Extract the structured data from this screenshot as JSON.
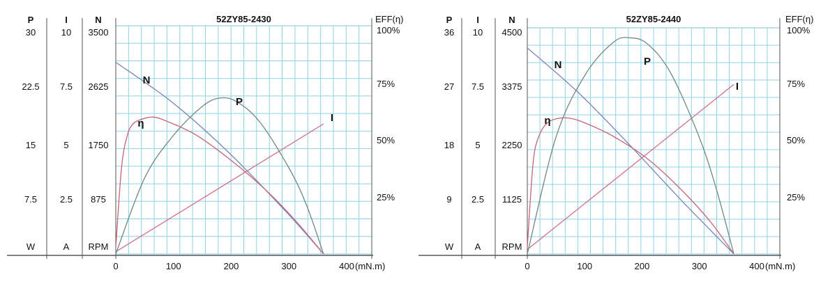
{
  "chart_data": [
    {
      "type": "line",
      "title": "52ZY85-2430",
      "xlabel": "(mN.m)",
      "x_ticks": [
        "0",
        "100",
        "200",
        "300",
        "400"
      ],
      "xlim": [
        0,
        400
      ],
      "grid": true,
      "axes": {
        "P": {
          "header": "P",
          "unit": "W",
          "ticks": [
            "30",
            "22.5",
            "15",
            "7.5"
          ],
          "range": [
            0,
            30
          ]
        },
        "I": {
          "header": "I",
          "unit": "A",
          "ticks": [
            "10",
            "7.5",
            "5",
            "2.5"
          ],
          "range": [
            0,
            10
          ]
        },
        "N": {
          "header": "N",
          "unit": "RPM",
          "ticks": [
            "3500",
            "2625",
            "1750",
            "875"
          ],
          "range": [
            0,
            3500
          ]
        },
        "EFF": {
          "header": "EFF(η)",
          "ticks": [
            "100%",
            "75%",
            "50%",
            "25%"
          ],
          "range": [
            0,
            100
          ]
        }
      },
      "series": [
        {
          "name": "N",
          "axis": "N",
          "color": "#7a86b4",
          "points": [
            [
              0,
              2940
            ],
            [
              100,
              2310
            ],
            [
              200,
              1520
            ],
            [
              300,
              600
            ],
            [
              360,
              0
            ]
          ]
        },
        {
          "name": "I",
          "axis": "I",
          "color": "#d36d86",
          "points": [
            [
              0,
              0.1
            ],
            [
              360,
              5.7
            ]
          ]
        },
        {
          "name": "P",
          "axis": "P",
          "color": "#6d8a80",
          "points": [
            [
              0,
              0
            ],
            [
              50,
              10.0
            ],
            [
              100,
              15.6
            ],
            [
              150,
              19.4
            ],
            [
              180,
              20.5
            ],
            [
              210,
              20.0
            ],
            [
              250,
              17.3
            ],
            [
              300,
              11.3
            ],
            [
              330,
              6.5
            ],
            [
              360,
              0
            ]
          ]
        },
        {
          "name": "η",
          "axis": "EFF",
          "color": "#c76278",
          "points": [
            [
              0,
              3
            ],
            [
              10,
              38
            ],
            [
              20,
              52
            ],
            [
              30,
              57
            ],
            [
              45,
              59
            ],
            [
              65,
              60
            ],
            [
              90,
              58
            ],
            [
              140,
              52
            ],
            [
              200,
              41
            ],
            [
              260,
              28
            ],
            [
              310,
              15
            ],
            [
              360,
              0
            ]
          ]
        }
      ]
    },
    {
      "type": "line",
      "title": "52ZY85-2440",
      "xlabel": "(mN.m)",
      "x_ticks": [
        "0",
        "100",
        "200",
        "300",
        "400"
      ],
      "xlim": [
        0,
        400
      ],
      "grid": true,
      "axes": {
        "P": {
          "header": "P",
          "unit": "W",
          "ticks": [
            "36",
            "27",
            "18",
            "9"
          ],
          "range": [
            0,
            36
          ]
        },
        "I": {
          "header": "I",
          "unit": "A",
          "ticks": [
            "10",
            "7.5",
            "5",
            "2.5"
          ],
          "range": [
            0,
            10
          ]
        },
        "N": {
          "header": "N",
          "unit": "RPM",
          "ticks": [
            "4500",
            "3375",
            "2250",
            "1125"
          ],
          "range": [
            0,
            4500
          ]
        },
        "EFF": {
          "header": "EFF(η)",
          "ticks": [
            "100%",
            "75%",
            "50%",
            "25%"
          ],
          "range": [
            0,
            100
          ]
        }
      },
      "series": [
        {
          "name": "N",
          "axis": "N",
          "color": "#7a86b4",
          "points": [
            [
              0,
              4100
            ],
            [
              90,
              3200
            ],
            [
              180,
              2150
            ],
            [
              270,
              1050
            ],
            [
              360,
              0
            ]
          ]
        },
        {
          "name": "I",
          "axis": "I",
          "color": "#d36d86",
          "points": [
            [
              0,
              0.2
            ],
            [
              360,
              7.5
            ]
          ]
        },
        {
          "name": "P",
          "axis": "P",
          "color": "#6d8a80",
          "points": [
            [
              0,
              0
            ],
            [
              50,
              18.6
            ],
            [
              100,
              28.4
            ],
            [
              150,
              33.7
            ],
            [
              180,
              34.4
            ],
            [
              210,
              33.4
            ],
            [
              250,
              28.8
            ],
            [
              300,
              18.5
            ],
            [
              330,
              10.2
            ],
            [
              360,
              0
            ]
          ]
        },
        {
          "name": "η",
          "axis": "EFF",
          "color": "#c76278",
          "points": [
            [
              0,
              3
            ],
            [
              10,
              40
            ],
            [
              20,
              52
            ],
            [
              35,
              58
            ],
            [
              55,
              60
            ],
            [
              75,
              60
            ],
            [
              100,
              58
            ],
            [
              150,
              52
            ],
            [
              210,
              42
            ],
            [
              270,
              28
            ],
            [
              320,
              14
            ],
            [
              360,
              0
            ]
          ]
        }
      ]
    }
  ]
}
